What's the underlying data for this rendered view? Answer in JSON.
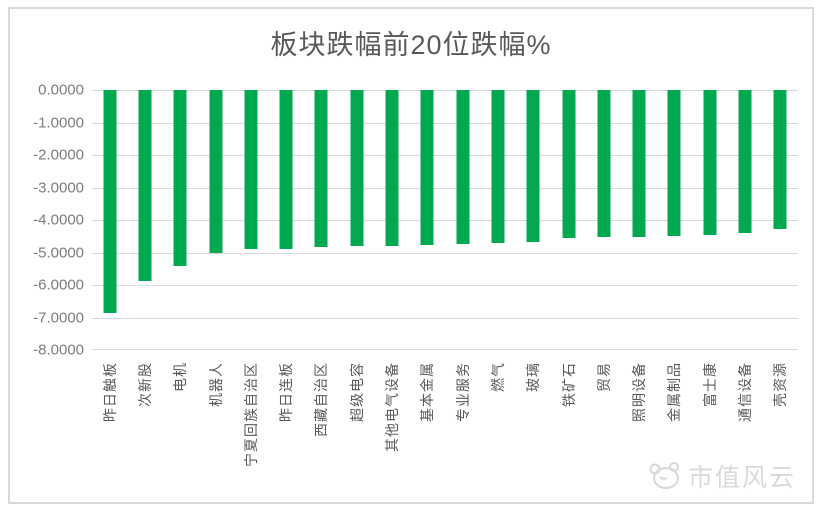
{
  "chart_data": {
    "type": "bar",
    "title": "板块跌幅前20位跌幅%",
    "categories": [
      "昨日触板",
      "次新股",
      "电机",
      "机器人",
      "宁夏回族自治区",
      "昨日连板",
      "西藏自治区",
      "超级电容",
      "其他电气设备",
      "基本金属",
      "专业服务",
      "燃气",
      "玻璃",
      "铁矿石",
      "贸易",
      "照明设备",
      "金属制品",
      "富士康",
      "通信设备",
      "壳资源"
    ],
    "values": [
      -6.85,
      -5.87,
      -5.42,
      -5.03,
      -4.9,
      -4.88,
      -4.84,
      -4.81,
      -4.79,
      -4.76,
      -4.73,
      -4.71,
      -4.67,
      -4.54,
      -4.53,
      -4.52,
      -4.5,
      -4.47,
      -4.4,
      -4.27
    ],
    "ytick_labels": [
      "0.0000",
      "-1.0000",
      "-2.0000",
      "-3.0000",
      "-4.0000",
      "-5.0000",
      "-6.0000",
      "-7.0000",
      "-8.0000"
    ],
    "ylim": [
      -8,
      0
    ],
    "xlabel": "",
    "ylabel": "",
    "legend": "none",
    "grid": "horizontal",
    "bar_color": "#00a94f",
    "title_color": "#595959",
    "axis_text_color": "#7c7c7c",
    "category_text_color": "#595959",
    "gridline_color": "#d9d9d9"
  },
  "watermark": {
    "logo": "mascot-logo",
    "text": "市值风云"
  }
}
